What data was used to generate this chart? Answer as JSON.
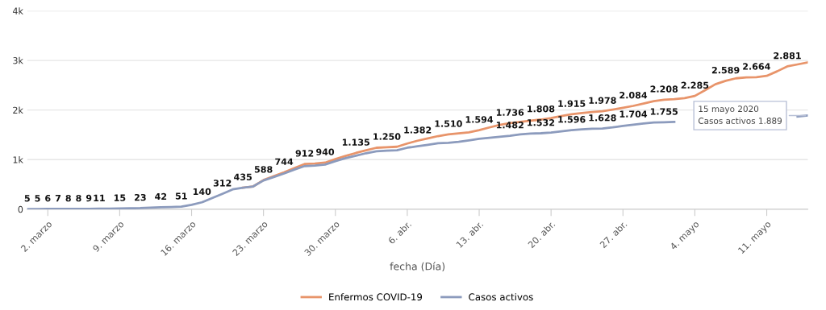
{
  "chart_data": {
    "type": "line",
    "xlabel": "fecha (Día)",
    "x": [
      "2020-02-29",
      "2020-03-01",
      "2020-03-02",
      "2020-03-03",
      "2020-03-04",
      "2020-03-05",
      "2020-03-06",
      "2020-03-07",
      "2020-03-08",
      "2020-03-09",
      "2020-03-10",
      "2020-03-11",
      "2020-03-12",
      "2020-03-13",
      "2020-03-14",
      "2020-03-15",
      "2020-03-16",
      "2020-03-17",
      "2020-03-18",
      "2020-03-19",
      "2020-03-20",
      "2020-03-21",
      "2020-03-22",
      "2020-03-23",
      "2020-03-24",
      "2020-03-25",
      "2020-03-26",
      "2020-03-27",
      "2020-03-28",
      "2020-03-29",
      "2020-03-30",
      "2020-03-31",
      "2020-04-01",
      "2020-04-02",
      "2020-04-03",
      "2020-04-04",
      "2020-04-05",
      "2020-04-06",
      "2020-04-07",
      "2020-04-08",
      "2020-04-09",
      "2020-04-10",
      "2020-04-11",
      "2020-04-12",
      "2020-04-13",
      "2020-04-14",
      "2020-04-15",
      "2020-04-16",
      "2020-04-17",
      "2020-04-18",
      "2020-04-19",
      "2020-04-20",
      "2020-04-21",
      "2020-04-22",
      "2020-04-23",
      "2020-04-24",
      "2020-04-25",
      "2020-04-26",
      "2020-04-27",
      "2020-04-28",
      "2020-04-29",
      "2020-04-30",
      "2020-05-01",
      "2020-05-02",
      "2020-05-03",
      "2020-05-04",
      "2020-05-05",
      "2020-05-06",
      "2020-05-07",
      "2020-05-08",
      "2020-05-09",
      "2020-05-10",
      "2020-05-11",
      "2020-05-12",
      "2020-05-13",
      "2020-05-14",
      "2020-05-15"
    ],
    "xlim": [
      "2020-02-29",
      "2020-05-15"
    ],
    "xticks": [
      {
        "value": "2020-03-02",
        "label": "2. marzo"
      },
      {
        "value": "2020-03-09",
        "label": "9. marzo"
      },
      {
        "value": "2020-03-16",
        "label": "16. marzo"
      },
      {
        "value": "2020-03-23",
        "label": "23. marzo"
      },
      {
        "value": "2020-03-30",
        "label": "30. marzo"
      },
      {
        "value": "2020-04-06",
        "label": "6. abr."
      },
      {
        "value": "2020-04-13",
        "label": "13. abr."
      },
      {
        "value": "2020-04-20",
        "label": "20. abr."
      },
      {
        "value": "2020-04-27",
        "label": "27. abr."
      },
      {
        "value": "2020-05-04",
        "label": "4. mayo"
      },
      {
        "value": "2020-05-11",
        "label": "11. mayo"
      }
    ],
    "ylim": [
      0,
      4000
    ],
    "yticks": [
      0,
      {
        "value": 1000,
        "label": "1k"
      },
      {
        "value": 2000,
        "label": "2k"
      },
      {
        "value": 3000,
        "label": "3k"
      },
      {
        "value": 4000,
        "label": "4k"
      }
    ],
    "grid": "y",
    "legend": "bottom",
    "marker": "none",
    "line_style": "solid",
    "series": [
      {
        "name": "Enfermos COVID-19",
        "color": "#e8946a",
        "values": [
          null,
          null,
          null,
          null,
          null,
          null,
          null,
          null,
          null,
          null,
          null,
          null,
          null,
          null,
          null,
          null,
          null,
          null,
          null,
          null,
          null,
          435,
          460,
          588,
          665,
          744,
          830,
          912,
          920,
          940,
          1010,
          1075,
          1135,
          1190,
          1240,
          1250,
          1260,
          1325,
          1382,
          1430,
          1475,
          1510,
          1530,
          1550,
          1594,
          1650,
          1700,
          1736,
          1760,
          1785,
          1808,
          1840,
          1880,
          1915,
          1940,
          1960,
          1978,
          2010,
          2045,
          2084,
          2130,
          2180,
          2208,
          2220,
          2240,
          2285,
          2400,
          2520,
          2589,
          2640,
          2660,
          2664,
          2690,
          2780,
          2881,
          2920,
          2960
        ],
        "value_labels": [
          null,
          null,
          null,
          null,
          null,
          null,
          null,
          null,
          null,
          null,
          null,
          null,
          null,
          null,
          null,
          null,
          null,
          null,
          null,
          null,
          null,
          "435",
          null,
          "588",
          null,
          "744",
          null,
          "912",
          null,
          "940",
          null,
          null,
          "1.135",
          null,
          null,
          "1.250",
          null,
          null,
          "1.382",
          null,
          null,
          "1.510",
          null,
          null,
          "1.594",
          null,
          null,
          "1.736",
          null,
          null,
          "1.808",
          null,
          null,
          "1.915",
          null,
          null,
          "1.978",
          null,
          null,
          "2.084",
          null,
          null,
          "2.208",
          null,
          null,
          "2.285",
          null,
          null,
          "2.589",
          null,
          null,
          "2.664",
          null,
          null,
          "2.881",
          null,
          null
        ]
      },
      {
        "name": "Casos activos",
        "color": "#8c9bbd",
        "values": [
          5,
          5,
          6,
          7,
          8,
          8,
          9,
          11,
          13,
          15,
          19,
          23,
          33,
          42,
          46,
          51,
          90,
          140,
          225,
          312,
          400,
          435,
          460,
          580,
          650,
          720,
          800,
          870,
          880,
          900,
          970,
          1030,
          1080,
          1130,
          1170,
          1180,
          1190,
          1240,
          1270,
          1300,
          1330,
          1340,
          1360,
          1390,
          1420,
          1440,
          1460,
          1482,
          1510,
          1525,
          1532,
          1545,
          1570,
          1596,
          1610,
          1625,
          1628,
          1650,
          1680,
          1704,
          1730,
          1750,
          1755,
          1760,
          null,
          null,
          null,
          null,
          null,
          null,
          null,
          null,
          null,
          null,
          null,
          1870,
          1889
        ],
        "value_labels": [
          "5",
          "5",
          "6",
          "7",
          "8",
          "8",
          "9",
          "11",
          null,
          "15",
          null,
          "23",
          null,
          "42",
          null,
          "51",
          null,
          "140",
          null,
          "312",
          null,
          null,
          null,
          null,
          null,
          null,
          null,
          null,
          null,
          null,
          null,
          null,
          null,
          null,
          null,
          null,
          null,
          null,
          null,
          null,
          null,
          null,
          null,
          null,
          null,
          null,
          null,
          "1.482",
          null,
          null,
          "1.532",
          null,
          null,
          "1.596",
          null,
          null,
          "1.628",
          null,
          null,
          "1.704",
          null,
          null,
          "1.755",
          null,
          null,
          null,
          null,
          null,
          null,
          null,
          null,
          null,
          null,
          null,
          null,
          null,
          null
        ]
      }
    ],
    "annotations": [
      {
        "text": "15 mayo 2020\nCasos activos 1.889",
        "x": "2020-05-15",
        "y": 1889
      }
    ]
  }
}
